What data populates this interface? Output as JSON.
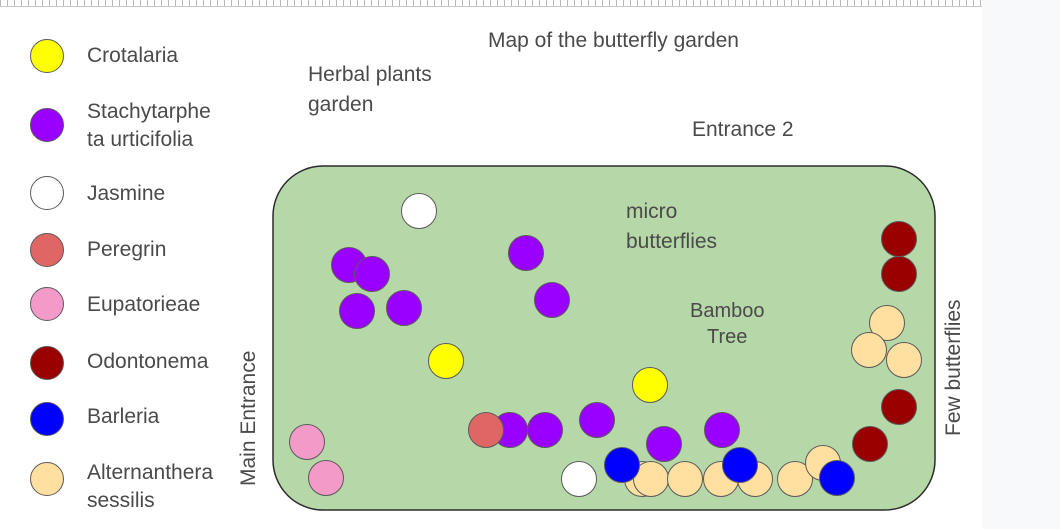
{
  "title": "Map of the butterfly garden",
  "legend": [
    {
      "name": "Crotalaria",
      "color": "#ffff00"
    },
    {
      "name": "Stachytarphe\nta urticifolia",
      "color": "#9900ff"
    },
    {
      "name": "Jasmine",
      "color": "#ffffff"
    },
    {
      "name": "Peregrin",
      "color": "#e06666"
    },
    {
      "name": "Eupatorieae",
      "color": "#f49ac9"
    },
    {
      "name": "Odontonema",
      "color": "#990000"
    },
    {
      "name": "Barleria",
      "color": "#0000ff"
    },
    {
      "name": "Alternanthera\nsessilis",
      "color": "#ffe0a0"
    }
  ],
  "labels": {
    "herbal": "Herbal plants\ngarden",
    "entrance2": "Entrance 2",
    "micro": "micro\nbutterflies",
    "bamboo": "Bamboo\nTree",
    "main_entrance": "Main Entrance",
    "few_butterflies": "Few butterflies"
  },
  "colors": {
    "garden_fill": "#b6d7a8",
    "garden_stroke": "#2b2b2b",
    "circle_stroke": "#5a5a5a"
  }
}
